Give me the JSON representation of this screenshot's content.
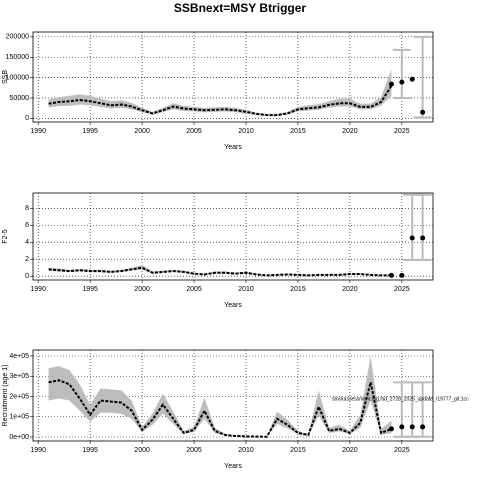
{
  "title": "SSBnext=MSY Btrigger",
  "chart_data": [
    {
      "type": "line",
      "ylabel": "SSB",
      "xlabel": "Years",
      "xlim": [
        1989.5,
        2028
      ],
      "xticks": [
        1990,
        1995,
        2000,
        2005,
        2010,
        2015,
        2020,
        2025
      ],
      "ylim": [
        -9000,
        212000
      ],
      "yticks": [
        0,
        50000,
        100000,
        150000,
        200000
      ],
      "x": [
        1991,
        1992,
        1993,
        1994,
        1995,
        1996,
        1997,
        1998,
        1999,
        2000,
        2001,
        2002,
        2003,
        2004,
        2005,
        2006,
        2007,
        2008,
        2009,
        2010,
        2011,
        2012,
        2013,
        2014,
        2015,
        2016,
        2017,
        2018,
        2019,
        2020,
        2021,
        2022,
        2023,
        2024
      ],
      "values": [
        36000,
        40000,
        42000,
        45000,
        42000,
        37000,
        32000,
        34000,
        29000,
        20000,
        12000,
        20000,
        29000,
        24000,
        22000,
        20000,
        21000,
        22000,
        20000,
        16000,
        11000,
        8000,
        8000,
        12000,
        22000,
        25000,
        27000,
        33000,
        37000,
        37000,
        28000,
        28000,
        40000,
        80000
      ],
      "lower": [
        27000,
        30000,
        31000,
        34000,
        32000,
        28000,
        24000,
        26000,
        22000,
        15000,
        9000,
        15000,
        22000,
        18000,
        17000,
        15000,
        16000,
        17000,
        15000,
        12000,
        8000,
        6000,
        6000,
        9000,
        17000,
        19000,
        21000,
        26000,
        29000,
        29000,
        22000,
        22000,
        31000,
        55000
      ],
      "upper": [
        47000,
        52000,
        55000,
        59000,
        55000,
        48000,
        42000,
        44000,
        38000,
        26000,
        16000,
        26000,
        37000,
        31000,
        28000,
        26000,
        27000,
        28000,
        26000,
        21000,
        14000,
        11000,
        11000,
        16000,
        28000,
        32000,
        35000,
        42000,
        48000,
        48000,
        36000,
        36000,
        52000,
        120000
      ],
      "forecast": {
        "x": [
          2024,
          2025,
          2026,
          2027
        ],
        "values": [
          84000,
          89000,
          96000,
          15000
        ],
        "lower": [
          null,
          50000,
          null,
          2000
        ],
        "upper": [
          null,
          168000,
          null,
          200000
        ]
      }
    },
    {
      "type": "line",
      "ylabel": "F2-5",
      "xlabel": "Years",
      "xlim": [
        1989.5,
        2028
      ],
      "xticks": [
        1990,
        1995,
        2000,
        2005,
        2010,
        2015,
        2020,
        2025
      ],
      "ylim": [
        -0.45,
        9.8
      ],
      "yticks": [
        0,
        2,
        4,
        6,
        8
      ],
      "x": [
        1991,
        1992,
        1993,
        1994,
        1995,
        1996,
        1997,
        1998,
        1999,
        2000,
        2001,
        2002,
        2003,
        2004,
        2005,
        2006,
        2007,
        2008,
        2009,
        2010,
        2011,
        2012,
        2013,
        2014,
        2015,
        2016,
        2017,
        2018,
        2019,
        2020,
        2021,
        2022,
        2023,
        2024
      ],
      "values": [
        0.8,
        0.7,
        0.6,
        0.7,
        0.6,
        0.6,
        0.5,
        0.6,
        0.8,
        1.0,
        0.4,
        0.5,
        0.6,
        0.5,
        0.3,
        0.2,
        0.4,
        0.4,
        0.3,
        0.4,
        0.2,
        0.1,
        0.15,
        0.2,
        0.15,
        0.1,
        0.15,
        0.15,
        0.15,
        0.25,
        0.25,
        0.15,
        0.1,
        0.1
      ],
      "lower": [
        0.65,
        0.55,
        0.5,
        0.55,
        0.5,
        0.5,
        0.4,
        0.5,
        0.65,
        0.8,
        0.3,
        0.4,
        0.5,
        0.4,
        0.25,
        0.15,
        0.3,
        0.3,
        0.25,
        0.3,
        0.15,
        0.07,
        0.1,
        0.15,
        0.1,
        0.07,
        0.1,
        0.1,
        0.1,
        0.18,
        0.18,
        0.1,
        0.06,
        0.05
      ],
      "upper": [
        1.0,
        0.9,
        0.75,
        0.85,
        0.75,
        0.75,
        0.65,
        0.75,
        1.0,
        1.3,
        0.55,
        0.65,
        0.75,
        0.65,
        0.4,
        0.3,
        0.55,
        0.55,
        0.4,
        0.55,
        0.3,
        0.15,
        0.22,
        0.28,
        0.22,
        0.15,
        0.22,
        0.22,
        0.22,
        0.35,
        0.35,
        0.22,
        0.16,
        0.18
      ],
      "forecast": {
        "x": [
          2024,
          2025,
          2026,
          2027
        ],
        "values": [
          0.1,
          0.1,
          4.5,
          4.5
        ],
        "lower": [
          null,
          null,
          1.9,
          1.9
        ],
        "upper": [
          null,
          null,
          9.6,
          9.6
        ]
      }
    },
    {
      "type": "line",
      "ylabel": "Recruitment (age 1)",
      "xlabel": "Years",
      "annotation": "stockassessment.org,fsd_2728_2025_update_r19777_git:1cc",
      "xlim": [
        1989.5,
        2028
      ],
      "xticks": [
        1990,
        1995,
        2000,
        2005,
        2010,
        2015,
        2020,
        2025
      ],
      "ylim": [
        -19750,
        429600
      ],
      "yticks": [
        {
          "value": 0,
          "label": "0e+00"
        },
        {
          "value": 100000,
          "label": "1e+05"
        },
        {
          "value": 200000,
          "label": "2e+05"
        },
        {
          "value": 300000,
          "label": "3e+05"
        },
        {
          "value": 400000,
          "label": "4e+05"
        }
      ],
      "x": [
        1991,
        1992,
        1993,
        1994,
        1995,
        1996,
        1997,
        1998,
        1999,
        2000,
        2001,
        2002,
        2003,
        2004,
        2005,
        2006,
        2007,
        2008,
        2009,
        2010,
        2011,
        2012,
        2013,
        2014,
        2015,
        2016,
        2017,
        2018,
        2019,
        2020,
        2021,
        2022,
        2023,
        2024
      ],
      "values": [
        270000,
        280000,
        260000,
        190000,
        110000,
        180000,
        175000,
        170000,
        130000,
        35000,
        85000,
        160000,
        90000,
        20000,
        35000,
        130000,
        30000,
        10000,
        5000,
        3000,
        2000,
        1000,
        90000,
        60000,
        20000,
        10000,
        150000,
        30000,
        40000,
        20000,
        70000,
        270000,
        20000,
        40000
      ],
      "lower": [
        180000,
        190000,
        180000,
        130000,
        75000,
        120000,
        120000,
        115000,
        90000,
        25000,
        60000,
        115000,
        65000,
        14000,
        25000,
        90000,
        20000,
        7000,
        3500,
        2000,
        1400,
        700,
        65000,
        42000,
        14000,
        7000,
        105000,
        20000,
        28000,
        14000,
        45000,
        180000,
        10000,
        20000
      ],
      "upper": [
        340000,
        350000,
        330000,
        260000,
        160000,
        240000,
        235000,
        230000,
        180000,
        50000,
        115000,
        215000,
        125000,
        30000,
        50000,
        195000,
        45000,
        15000,
        8000,
        5000,
        3000,
        2000,
        125000,
        85000,
        30000,
        15000,
        230000,
        45000,
        60000,
        30000,
        110000,
        400000,
        40000,
        80000
      ],
      "forecast": {
        "x": [
          2024,
          2025,
          2026,
          2027
        ],
        "values": [
          40000,
          50000,
          50000,
          50000
        ],
        "lower": [
          null,
          1000,
          1000,
          1000
        ],
        "upper": [
          null,
          270000,
          270000,
          270000
        ]
      }
    }
  ]
}
